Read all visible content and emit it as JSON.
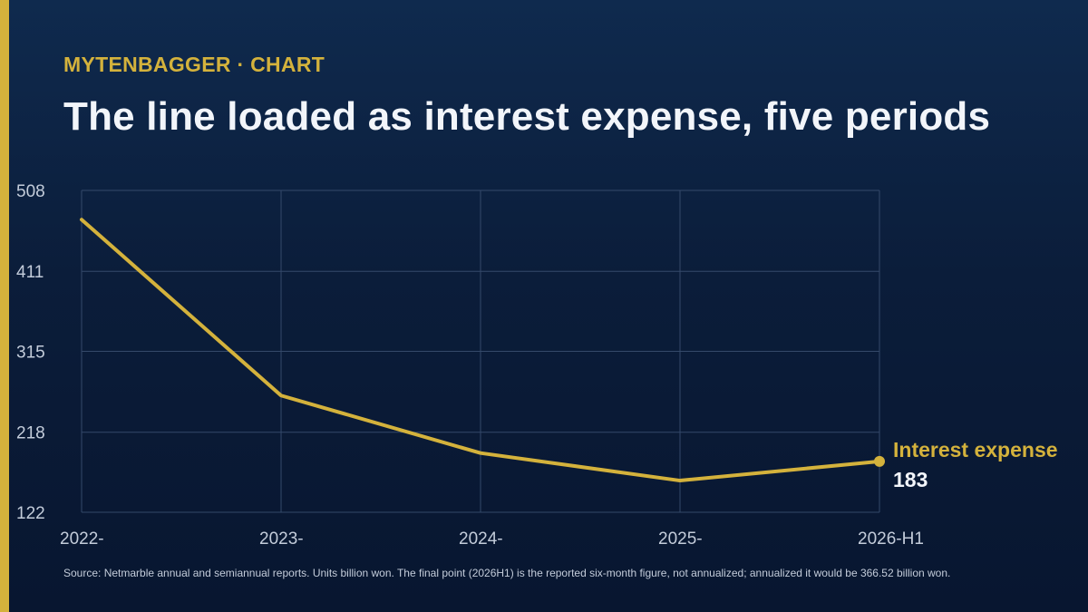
{
  "header": {
    "kicker": "MYTENBAGGER · CHART",
    "title": "The line loaded as interest expense, five periods"
  },
  "chart_data": {
    "type": "line",
    "title": "The line loaded as interest expense, five periods",
    "xlabel": "",
    "ylabel": "",
    "categories": [
      "2022-",
      "2023-",
      "2024-",
      "2025-",
      "2026-H1"
    ],
    "series": [
      {
        "name": "Interest expense",
        "values": [
          473,
          262,
          193,
          160,
          183
        ],
        "color": "#d4b23c"
      }
    ],
    "y_ticks": [
      508,
      411,
      315,
      218,
      122
    ],
    "ylim": [
      122,
      508
    ],
    "grid": true,
    "end_label": {
      "series": "Interest expense",
      "value": "183"
    }
  },
  "footer": {
    "source": "Source: Netmarble annual and semiannual reports. Units billion won. The final point (2026H1) is the reported six-month figure, not annualized; annualized it would be 366.52 billion won."
  },
  "colors": {
    "accent": "#d4b23c",
    "grid": "#34496a",
    "tick_text": "#c3ccda"
  }
}
